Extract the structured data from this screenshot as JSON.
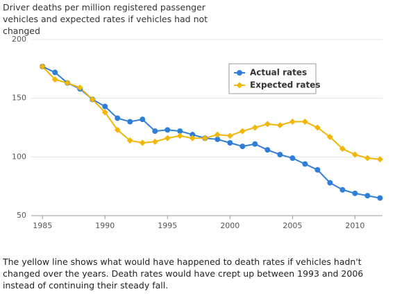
{
  "chart_data": {
    "type": "line",
    "title": "Driver deaths per million registered passenger vehicles and expected rates if vehicles had not changed",
    "x": [
      1985,
      1986,
      1987,
      1988,
      1989,
      1990,
      1991,
      1992,
      1993,
      1994,
      1995,
      1996,
      1997,
      1998,
      1999,
      2000,
      2001,
      2002,
      2003,
      2004,
      2005,
      2006,
      2007,
      2008,
      2009,
      2010,
      2011,
      2012
    ],
    "series": [
      {
        "name": "Actual rates",
        "color": "#2f7ed8",
        "values": [
          177,
          172,
          163,
          158,
          149,
          143,
          133,
          130,
          132,
          122,
          123,
          122,
          119,
          116,
          115,
          112,
          109,
          111,
          106,
          102,
          99,
          94,
          89,
          78,
          72,
          69,
          67,
          65
        ]
      },
      {
        "name": "Expected rates",
        "color": "#f2b705",
        "values": [
          177,
          166,
          163,
          159,
          149,
          138,
          123,
          114,
          112,
          113,
          116,
          118,
          116,
          116,
          119,
          118,
          122,
          125,
          128,
          127,
          130,
          130,
          125,
          117,
          107,
          102,
          99,
          98
        ]
      }
    ],
    "xlim": [
      1984.1,
      2012.2
    ],
    "xticks": [
      1985,
      1990,
      1995,
      2000,
      2005,
      2010
    ],
    "ylim": [
      50,
      200
    ],
    "yticks": [
      50,
      100,
      150,
      200
    ],
    "grid": true,
    "legend": "top-right",
    "caption": "The yellow line shows what would have happened to death rates if vehicles hadn't changed over the years. Death rates would have crept up between 1993 and 2006 instead of continuing their steady fall."
  }
}
